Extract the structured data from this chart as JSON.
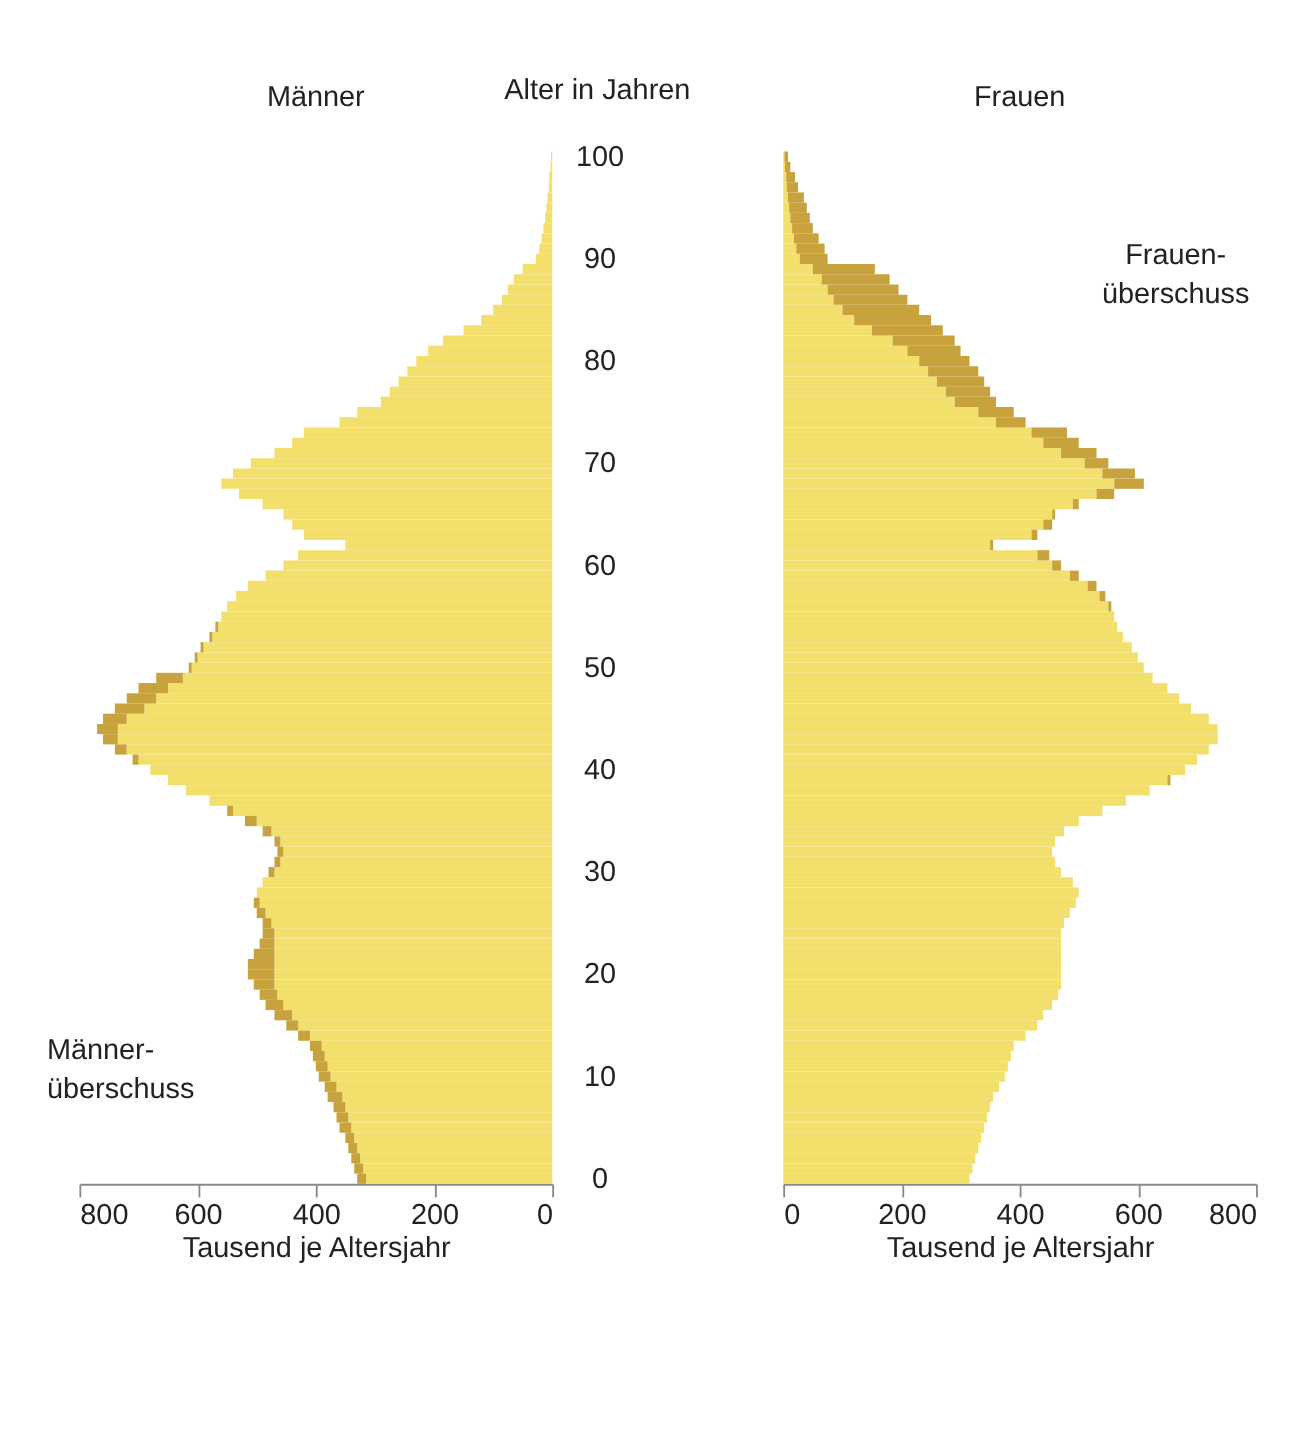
{
  "chart_data": [
    {
      "type": "bar",
      "orientation": "horizontal",
      "stacked": true,
      "title": "Männer",
      "ylabel": "Alter in Jahren",
      "xlabel": "Tausend je Altersjahr",
      "categories": [
        "100",
        null,
        null,
        null,
        null,
        null,
        null,
        null,
        null,
        null,
        "90",
        null,
        null,
        null,
        null,
        null,
        null,
        null,
        null,
        null,
        "80",
        null,
        null,
        null,
        null,
        null,
        null,
        null,
        null,
        null,
        "70",
        null,
        null,
        null,
        null,
        null,
        null,
        null,
        null,
        null,
        "60",
        null,
        null,
        null,
        null,
        null,
        null,
        null,
        null,
        null,
        "50",
        null,
        null,
        null,
        null,
        null,
        null,
        null,
        null,
        null,
        "40",
        null,
        null,
        null,
        null,
        null,
        null,
        null,
        null,
        null,
        "30",
        null,
        null,
        null,
        null,
        null,
        null,
        null,
        null,
        null,
        "20",
        null,
        null,
        null,
        null,
        null,
        null,
        null,
        null,
        null,
        "10",
        null,
        null,
        null,
        null,
        null,
        null,
        null,
        null,
        null,
        "0"
      ],
      "series": [
        {
          "color": "#f3df6c",
          "values": [
            2,
            3,
            5,
            6,
            8,
            10,
            12,
            15,
            18,
            22,
            28,
            50,
            65,
            75,
            85,
            100,
            120,
            150,
            185,
            210,
            230,
            245,
            260,
            275,
            290,
            330,
            360,
            420,
            440,
            470,
            510,
            540,
            560,
            530,
            490,
            455,
            440,
            420,
            350,
            430,
            455,
            485,
            515,
            535,
            550,
            560,
            565,
            575,
            590,
            600,
            610,
            625,
            650,
            670,
            690,
            720,
            735,
            735,
            720,
            700,
            680,
            650,
            620,
            580,
            540,
            500,
            475,
            460,
            455,
            460,
            470,
            490,
            500,
            495,
            485,
            475,
            470,
            470,
            470,
            470,
            470,
            470,
            465,
            455,
            440,
            430,
            410,
            390,
            385,
            380,
            375,
            365,
            355,
            350,
            345,
            340,
            335,
            330,
            325,
            320,
            315
          ]
        },
        {
          "color": "#c8a23c",
          "values": [
            0,
            0,
            0,
            0,
            0,
            0,
            0,
            0,
            0,
            0,
            0,
            0,
            0,
            0,
            0,
            0,
            0,
            0,
            0,
            0,
            0,
            0,
            0,
            0,
            0,
            0,
            0,
            0,
            0,
            0,
            0,
            0,
            0,
            0,
            0,
            0,
            0,
            0,
            0,
            0,
            0,
            0,
            0,
            0,
            0,
            0,
            5,
            5,
            5,
            5,
            5,
            45,
            50,
            50,
            50,
            40,
            35,
            25,
            20,
            10,
            0,
            0,
            0,
            0,
            10,
            20,
            15,
            10,
            10,
            10,
            10,
            0,
            0,
            10,
            15,
            15,
            20,
            25,
            35,
            45,
            45,
            35,
            30,
            30,
            30,
            20,
            20,
            20,
            20,
            20,
            20,
            20,
            25,
            20,
            20,
            20,
            15,
            15,
            15,
            15,
            15
          ]
        }
      ],
      "xlim": [
        800,
        0
      ],
      "xticks": [
        800,
        600,
        400,
        200,
        0
      ],
      "annotations": [
        "Männer-\nüberschuss"
      ]
    },
    {
      "type": "bar",
      "orientation": "horizontal",
      "stacked": true,
      "title": "Frauen",
      "xlabel": "Tausend je Altersjahr",
      "tick_labels": "x",
      "categories": [
        "100",
        null,
        null,
        null,
        null,
        null,
        null,
        null,
        null,
        null,
        "90",
        null,
        null,
        null,
        null,
        null,
        null,
        null,
        null,
        null,
        "80",
        null,
        null,
        null,
        null,
        null,
        null,
        null,
        null,
        null,
        "70",
        null,
        null,
        null,
        null,
        null,
        null,
        null,
        null,
        null,
        "60",
        null,
        null,
        null,
        null,
        null,
        null,
        null,
        null,
        null,
        "50",
        null,
        null,
        null,
        null,
        null,
        null,
        null,
        null,
        null,
        "40",
        null,
        null,
        null,
        null,
        null,
        null,
        null,
        null,
        null,
        "30",
        null,
        null,
        null,
        null,
        null,
        null,
        null,
        null,
        null,
        "20",
        null,
        null,
        null,
        null,
        null,
        null,
        null,
        null,
        null,
        "10",
        null,
        null,
        null,
        null,
        null,
        null,
        null,
        null,
        null,
        "0"
      ],
      "series": [
        {
          "color": "#f3df6c",
          "values": [
            2,
            3,
            5,
            6,
            8,
            10,
            12,
            15,
            18,
            22,
            28,
            50,
            65,
            75,
            85,
            100,
            120,
            150,
            185,
            210,
            230,
            245,
            260,
            275,
            290,
            330,
            360,
            420,
            440,
            470,
            510,
            540,
            560,
            530,
            490,
            455,
            440,
            420,
            350,
            430,
            455,
            485,
            515,
            535,
            550,
            560,
            565,
            575,
            590,
            600,
            610,
            625,
            650,
            670,
            690,
            720,
            735,
            735,
            720,
            700,
            680,
            650,
            620,
            580,
            540,
            500,
            475,
            460,
            455,
            460,
            470,
            490,
            500,
            495,
            485,
            475,
            470,
            470,
            470,
            470,
            470,
            470,
            465,
            455,
            440,
            430,
            410,
            390,
            385,
            380,
            375,
            365,
            355,
            350,
            345,
            340,
            335,
            330,
            325,
            320,
            315
          ]
        },
        {
          "color": "#c8a23c",
          "values": [
            6,
            9,
            15,
            19,
            27,
            30,
            33,
            35,
            42,
            48,
            47,
            105,
            115,
            120,
            125,
            130,
            130,
            120,
            105,
            90,
            85,
            85,
            80,
            75,
            70,
            60,
            50,
            60,
            60,
            60,
            40,
            55,
            50,
            30,
            10,
            5,
            15,
            10,
            5,
            20,
            15,
            15,
            15,
            10,
            5,
            0,
            0,
            0,
            0,
            0,
            0,
            0,
            0,
            0,
            0,
            0,
            0,
            0,
            0,
            0,
            0,
            5,
            0,
            0,
            0,
            0,
            0,
            0,
            0,
            0,
            0,
            0,
            0,
            0,
            0,
            0,
            0,
            0,
            0,
            0,
            0,
            0,
            0,
            0,
            0,
            0,
            0,
            0,
            0,
            0,
            0,
            0,
            0,
            0,
            0,
            0,
            0,
            0,
            0,
            0,
            0
          ]
        }
      ],
      "xlim": [
        0,
        800
      ],
      "xticks": [
        0,
        200,
        400,
        600,
        800
      ],
      "annotations": [
        "Frauen-\nüberschuss"
      ]
    }
  ]
}
